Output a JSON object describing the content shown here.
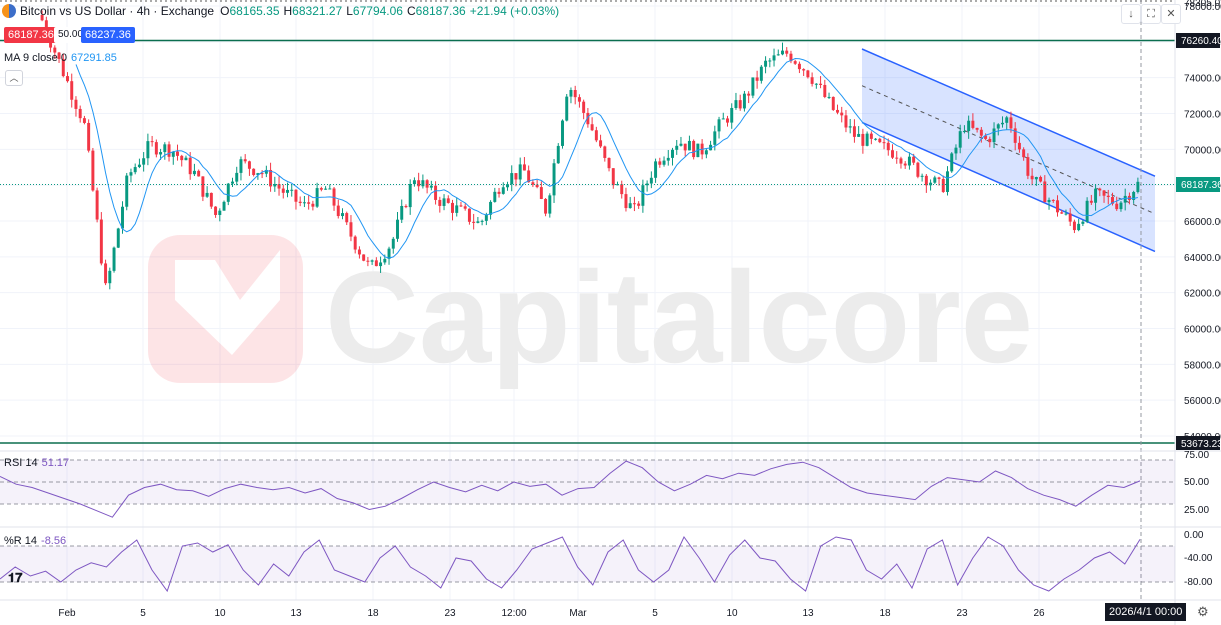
{
  "header": {
    "title": "Bitcoin vs US Dollar · 4h · Exchange",
    "o_label": "O",
    "o": "68165.35",
    "h_label": "H",
    "h": "68321.27",
    "l_label": "L",
    "l": "67794.06",
    "c_label": "C",
    "c": "68187.36",
    "change": "+21.94 (+0.03%)"
  },
  "trade": {
    "sell": "68187.36",
    "spread": "50.00",
    "buy": "68237.36"
  },
  "ma": {
    "label": "MA 9 close 0",
    "value": "67291.85"
  },
  "rsi": {
    "label": "RSI 14",
    "value": "51.17"
  },
  "wr": {
    "label": "%R 14",
    "value": "-8.56"
  },
  "watermark": "Capitalcore",
  "price_axis": {
    "top_cut": "78305.02",
    "ticks": [
      "78000.00",
      "76000.00",
      "74000.00",
      "72000.00",
      "70000.00",
      "68000.00",
      "66000.00",
      "64000.00",
      "62000.00",
      "60000.00",
      "58000.00",
      "56000.00",
      "54000.00"
    ],
    "resistance_label": "76260.40",
    "current_label": "68187.36",
    "support_label": "53673.23"
  },
  "rsi_axis": [
    "75.00",
    "50.00",
    "25.00"
  ],
  "wr_axis": [
    "0.00",
    "-40.00",
    "-80.00"
  ],
  "time_axis": [
    "Feb",
    "5",
    "10",
    "13",
    "18",
    "23",
    "12:00",
    "Mar",
    "5",
    "10",
    "13",
    "18",
    "23",
    "26"
  ],
  "cursor_date": "2026/4/1  00:00",
  "colors": {
    "up": "#089981",
    "down": "#f23645",
    "ma": "#2196f3",
    "channel": "#2962ff",
    "osc": "#7e57c2",
    "level": "#0b6e4f"
  },
  "chart_data": [
    {
      "type": "candlestick",
      "title": "Bitcoin vs US Dollar · 4h · Exchange",
      "ylim": [
        53200,
        78305
      ],
      "horizontal_levels": [
        76260.4,
        53673.23
      ],
      "current_price": 68187.36,
      "close_path": [
        {
          "x": "Feb",
          "y": 77500
        },
        {
          "x": "3",
          "y": 74500
        },
        {
          "x": "5",
          "y": 71500
        },
        {
          "x": "6",
          "y": 62000
        },
        {
          "x": "7",
          "y": 68500
        },
        {
          "x": "8",
          "y": 70200
        },
        {
          "x": "10",
          "y": 70000
        },
        {
          "x": "11",
          "y": 68700
        },
        {
          "x": "13",
          "y": 66300
        },
        {
          "x": "15",
          "y": 69300
        },
        {
          "x": "16",
          "y": 68800
        },
        {
          "x": "18",
          "y": 67700
        },
        {
          "x": "20",
          "y": 66800
        },
        {
          "x": "21",
          "y": 67800
        },
        {
          "x": "23",
          "y": 65500
        },
        {
          "x": "24",
          "y": 63300
        },
        {
          "x": "25",
          "y": 64800
        },
        {
          "x": "26",
          "y": 68500
        },
        {
          "x": "27",
          "y": 67300
        },
        {
          "x": "28",
          "y": 66600
        },
        {
          "x": "Mar",
          "y": 65800
        },
        {
          "x": "2",
          "y": 68300
        },
        {
          "x": "3",
          "y": 68800
        },
        {
          "x": "4",
          "y": 66600
        },
        {
          "x": "5",
          "y": 73700
        },
        {
          "x": "6",
          "y": 71400
        },
        {
          "x": "8",
          "y": 68300
        },
        {
          "x": "9",
          "y": 66500
        },
        {
          "x": "10",
          "y": 69300
        },
        {
          "x": "11",
          "y": 70500
        },
        {
          "x": "12",
          "y": 69800
        },
        {
          "x": "13",
          "y": 71500
        },
        {
          "x": "14",
          "y": 72800
        },
        {
          "x": "15",
          "y": 74800
        },
        {
          "x": "16",
          "y": 75400
        },
        {
          "x": "17",
          "y": 74200
        },
        {
          "x": "18",
          "y": 72300
        },
        {
          "x": "19",
          "y": 70800
        },
        {
          "x": "20",
          "y": 70200
        },
        {
          "x": "21",
          "y": 69800
        },
        {
          "x": "22",
          "y": 68700
        },
        {
          "x": "23",
          "y": 67800
        },
        {
          "x": "24",
          "y": 71400
        },
        {
          "x": "25",
          "y": 70500
        },
        {
          "x": "26",
          "y": 71800
        },
        {
          "x": "27",
          "y": 68500
        },
        {
          "x": "28",
          "y": 67000
        },
        {
          "x": "29",
          "y": 65700
        },
        {
          "x": "30",
          "y": 67400
        },
        {
          "x": "31",
          "y": 67000
        },
        {
          "x": "Apr 1",
          "y": 68187
        }
      ],
      "ma9": {
        "name": "MA 9 close 0",
        "last": 67291.85
      },
      "channel": {
        "upper": [
          {
            "x": "16 Mar",
            "y": 75600
          },
          {
            "x": "1 Apr",
            "y": 68500
          }
        ],
        "lower": [
          {
            "x": "16 Mar",
            "y": 71500
          },
          {
            "x": "1 Apr",
            "y": 64300
          }
        ]
      }
    },
    {
      "type": "line",
      "title": "RSI 14",
      "ylim": [
        15,
        80
      ],
      "bands": [
        70,
        50,
        30
      ],
      "last": 51.17,
      "values": [
        55,
        48,
        45,
        40,
        35,
        30,
        24,
        18,
        38,
        45,
        48,
        43,
        42,
        37,
        44,
        48,
        45,
        43,
        45,
        40,
        44,
        35,
        31,
        25,
        28,
        35,
        43,
        50,
        45,
        41,
        47,
        42,
        50,
        46,
        48,
        38,
        44,
        45,
        58,
        69,
        63,
        50,
        42,
        48,
        56,
        53,
        58,
        56,
        62,
        66,
        68,
        63,
        54,
        45,
        40,
        38,
        36,
        34,
        46,
        54,
        52,
        50,
        60,
        54,
        44,
        38,
        34,
        28,
        38,
        47,
        45,
        51
      ]
    },
    {
      "type": "line",
      "title": "%R 14",
      "ylim": [
        -100,
        5
      ],
      "bands": [
        -20,
        -80
      ],
      "last": -8.56,
      "values": [
        -75,
        -55,
        -70,
        -62,
        -80,
        -60,
        -48,
        -55,
        -30,
        -10,
        -60,
        -95,
        -20,
        -15,
        -30,
        -18,
        -60,
        -85,
        -50,
        -70,
        -30,
        -10,
        -60,
        -70,
        -80,
        -40,
        -20,
        -55,
        -70,
        -90,
        -40,
        -45,
        -75,
        -90,
        -60,
        -25,
        -15,
        -5,
        -55,
        -85,
        -30,
        -10,
        -60,
        -80,
        -60,
        -5,
        -40,
        -80,
        -35,
        -10,
        -40,
        -45,
        -75,
        -95,
        -20,
        -5,
        -10,
        -60,
        -75,
        -50,
        -90,
        -25,
        -10,
        -85,
        -40,
        -5,
        -20,
        -60,
        -85,
        -95,
        -75,
        -60,
        -40,
        -30,
        -50,
        -9
      ]
    }
  ]
}
